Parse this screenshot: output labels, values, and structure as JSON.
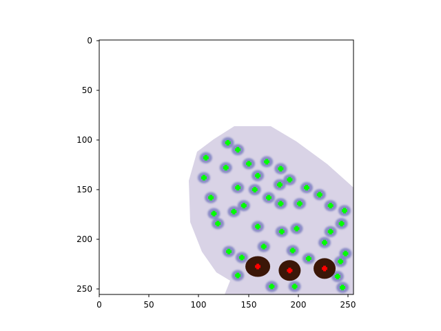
{
  "figure": {
    "x_ticks": [
      "0",
      "50",
      "100",
      "150",
      "200",
      "250"
    ],
    "y_ticks": [
      "0",
      "50",
      "100",
      "150",
      "200",
      "250"
    ]
  },
  "colors": {
    "background": "#ffffff",
    "tissue": "#d9d3e6",
    "nucleus": "#7b7fbf",
    "stained_nucleus": "#3b1607",
    "negative_marker": "#00ff00",
    "positive_marker": "#ff0000"
  },
  "chart_data": {
    "type": "scatter",
    "title": "",
    "xlabel": "",
    "ylabel": "",
    "xlim": [
      0,
      255
    ],
    "ylim": [
      255,
      0
    ],
    "x_ticks": [
      0,
      50,
      100,
      150,
      200,
      250
    ],
    "y_ticks": [
      0,
      50,
      100,
      150,
      200,
      250
    ],
    "background_image": "histology tissue patch with hematoxylin nuclei and brown DAB-stained nuclei",
    "series": [
      {
        "color": "#00ff00",
        "points": [
          [
            129,
            103
          ],
          [
            139,
            110
          ],
          [
            107,
            118
          ],
          [
            150,
            124
          ],
          [
            168,
            122
          ],
          [
            127,
            128
          ],
          [
            182,
            129
          ],
          [
            105,
            138
          ],
          [
            159,
            136
          ],
          [
            191,
            140
          ],
          [
            181,
            145
          ],
          [
            208,
            148
          ],
          [
            139,
            148
          ],
          [
            156,
            150
          ],
          [
            221,
            155
          ],
          [
            112,
            158
          ],
          [
            170,
            158
          ],
          [
            232,
            166
          ],
          [
            201,
            164
          ],
          [
            182,
            164
          ],
          [
            145,
            166
          ],
          [
            246,
            171
          ],
          [
            135,
            172
          ],
          [
            115,
            174
          ],
          [
            119,
            184
          ],
          [
            243,
            184
          ],
          [
            159,
            187
          ],
          [
            198,
            189
          ],
          [
            183,
            192
          ],
          [
            232,
            192
          ],
          [
            130,
            212
          ],
          [
            165,
            207
          ],
          [
            194,
            211
          ],
          [
            226,
            203
          ],
          [
            247,
            214
          ],
          [
            143,
            218
          ],
          [
            210,
            219
          ],
          [
            242,
            222
          ],
          [
            139,
            236
          ],
          [
            239,
            237
          ],
          [
            173,
            247
          ],
          [
            196,
            247
          ],
          [
            244,
            248
          ]
        ]
      },
      {
        "color": "#ff0000",
        "points": [
          [
            159,
            227
          ],
          [
            191,
            231
          ],
          [
            226,
            229
          ]
        ]
      }
    ]
  }
}
